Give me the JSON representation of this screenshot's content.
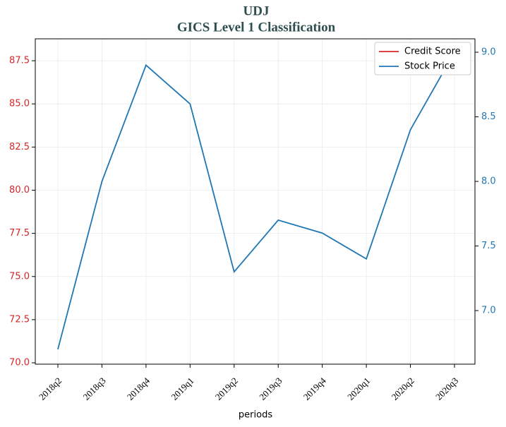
{
  "chart_data": {
    "type": "line",
    "title": "UDJ",
    "subtitle": "GICS Level 1 Classification",
    "xlabel": "periods",
    "categories": [
      "2018q2",
      "2018q3",
      "2018q4",
      "2019q1",
      "2019q2",
      "2019q3",
      "2019q4",
      "2020q1",
      "2020q2",
      "2020q3"
    ],
    "series": [
      {
        "name": "Credit Score",
        "color": "#d62728",
        "axis": "y",
        "values": [
          null,
          null,
          null,
          null,
          null,
          null,
          null,
          null,
          null,
          null
        ]
      },
      {
        "name": "Stock Price",
        "color": "#1f77b4",
        "axis": "y2",
        "values": [
          6.7,
          8.0,
          8.9,
          8.6,
          7.3,
          7.7,
          7.6,
          7.4,
          8.4,
          9.0
        ]
      }
    ],
    "ylim": [
      69.92,
      88.77
    ],
    "yticks": [
      {
        "value": 70,
        "label": "70.0"
      },
      72.5,
      {
        "value": 75,
        "label": "75.0"
      },
      77.5,
      {
        "value": 80,
        "label": "80.0"
      },
      82.5,
      {
        "value": 85,
        "label": "85.0"
      },
      87.5
    ],
    "y2lim": [
      6.585,
      9.104
    ],
    "y2ticks": [
      {
        "value": 7,
        "label": "7.0"
      },
      7.5,
      {
        "value": 8,
        "label": "8.0"
      },
      8.5,
      {
        "value": 9,
        "label": "9.0"
      }
    ],
    "grid": true,
    "legend": "upper right"
  }
}
